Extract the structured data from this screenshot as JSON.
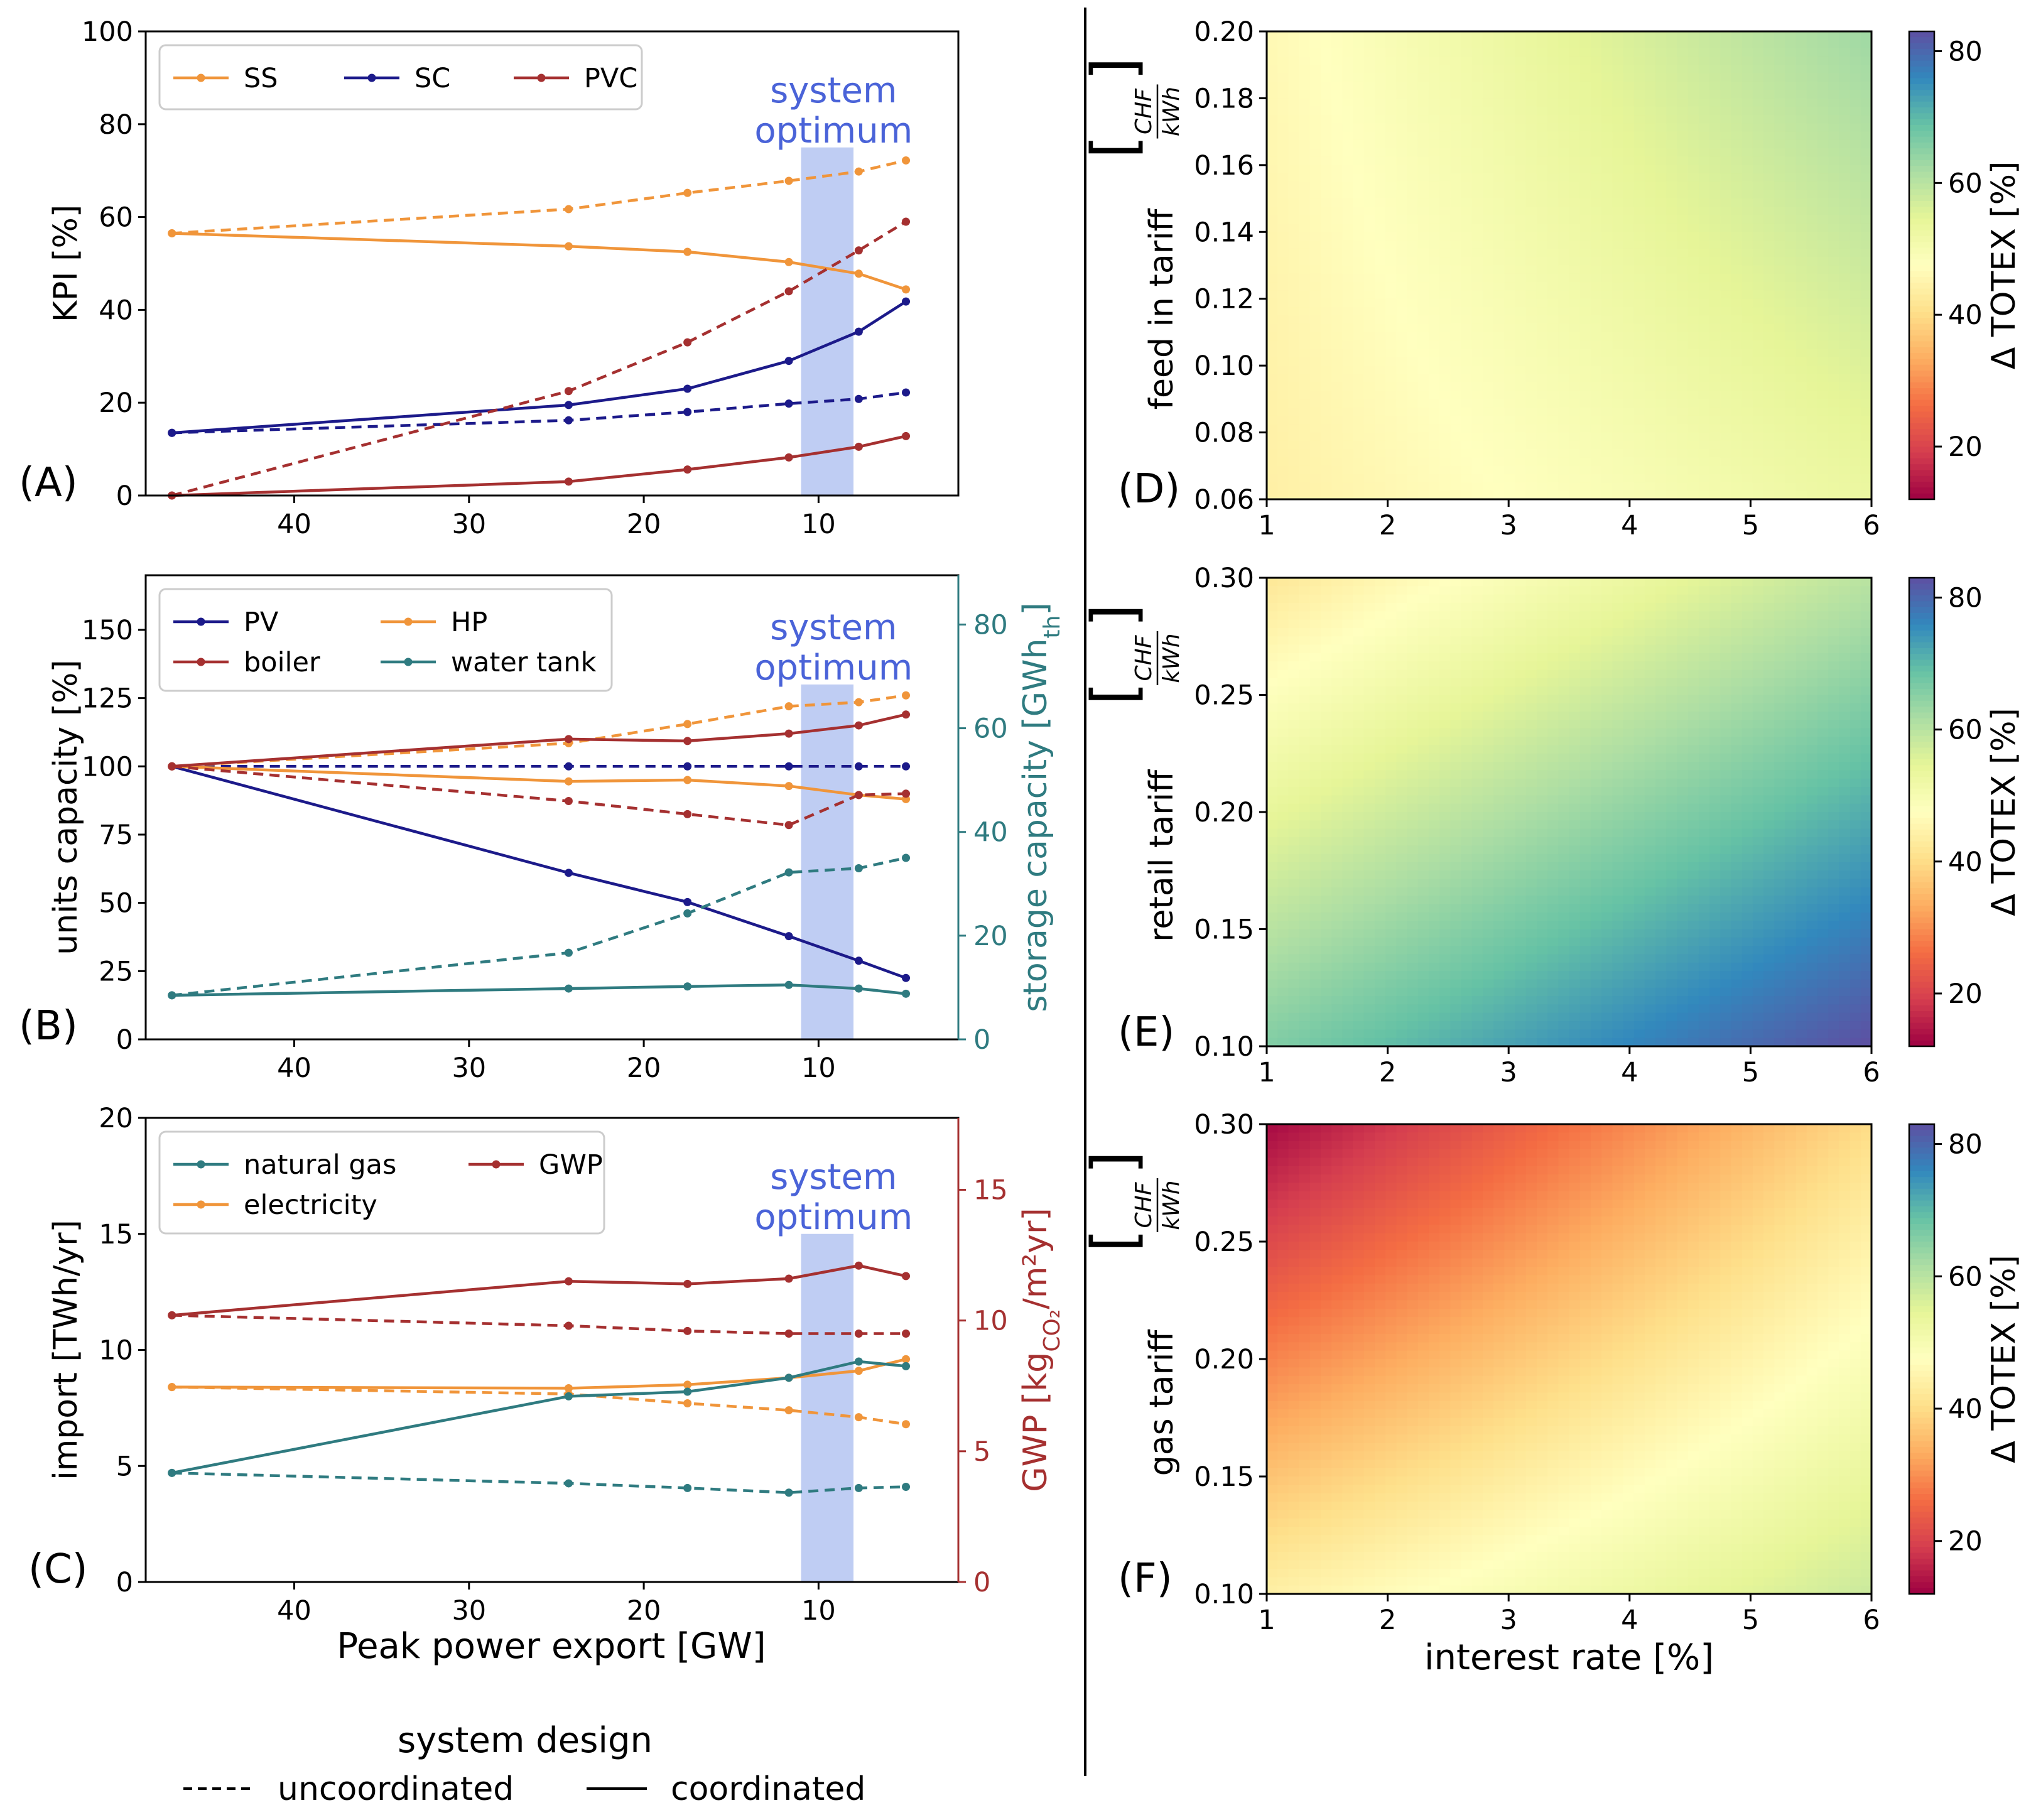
{
  "figure": {
    "legend_title": "system design",
    "legend_items": [
      {
        "label": "uncoordinated",
        "style": "dashed"
      },
      {
        "label": "coordinated",
        "style": "solid"
      }
    ],
    "shared_xlabel": "Peak power export [GW]",
    "optimum_label": [
      "system",
      "optimum"
    ],
    "colors": {
      "orange": "#f0953a",
      "navy": "#1c1a8a",
      "darkred": "#a53030",
      "teal": "#2f7b80",
      "optimum_band": "#bccaf2",
      "optimum_text": "#4a63d8"
    }
  },
  "chart_data": [
    {
      "panel": "(A)",
      "type": "line",
      "ylabel": "KPI [%]",
      "xlim": [
        48.5,
        2
      ],
      "ylim": [
        0,
        100
      ],
      "xticks": [
        40,
        30,
        20,
        10
      ],
      "yticks": [
        0,
        20,
        40,
        60,
        80,
        100
      ],
      "optimum_band": [
        11,
        8
      ],
      "optimum_band_ymax": 75,
      "legend": [
        {
          "name": "SS",
          "color": "#f0953a"
        },
        {
          "name": "SC",
          "color": "#1c1a8a"
        },
        {
          "name": "PVC",
          "color": "#a53030"
        }
      ],
      "series": [
        {
          "name": "SS",
          "style": "dashed",
          "color": "#f0953a",
          "x": [
            47,
            24.3,
            17.5,
            11.7,
            7.7,
            5
          ],
          "y": [
            56.5,
            61.7,
            65.2,
            67.8,
            69.8,
            72.2
          ]
        },
        {
          "name": "SS",
          "style": "solid",
          "color": "#f0953a",
          "x": [
            47,
            24.3,
            17.5,
            11.7,
            7.7,
            5
          ],
          "y": [
            56.5,
            53.7,
            52.5,
            50.3,
            47.8,
            44.4
          ]
        },
        {
          "name": "SC",
          "style": "solid",
          "color": "#1c1a8a",
          "x": [
            47,
            24.3,
            17.5,
            11.7,
            7.7,
            5
          ],
          "y": [
            13.5,
            19.5,
            23,
            29,
            35.3,
            41.8
          ]
        },
        {
          "name": "SC",
          "style": "dashed",
          "color": "#1c1a8a",
          "x": [
            47,
            24.3,
            17.5,
            11.7,
            7.7,
            5
          ],
          "y": [
            13.5,
            16.2,
            18,
            19.8,
            20.8,
            22.2
          ]
        },
        {
          "name": "PVC",
          "style": "dashed",
          "color": "#a53030",
          "x": [
            47,
            24.3,
            17.5,
            11.7,
            7.7,
            5
          ],
          "y": [
            0,
            22.5,
            33,
            44,
            52.8,
            59
          ]
        },
        {
          "name": "PVC",
          "style": "solid",
          "color": "#a53030",
          "x": [
            47,
            24.3,
            17.5,
            11.7,
            7.7,
            5
          ],
          "y": [
            0,
            3,
            5.6,
            8.2,
            10.5,
            12.8
          ]
        }
      ]
    },
    {
      "panel": "(B)",
      "type": "line",
      "ylabel": "units capacity [%]",
      "ylabel_right_main": "storage capacity [GWh",
      "ylabel_right_sub": "th",
      "ylabel_right_end": "]",
      "xlim": [
        48.5,
        2
      ],
      "ylim": [
        0,
        170
      ],
      "ylim_right": [
        0,
        89.5
      ],
      "xticks": [
        40,
        30,
        20,
        10
      ],
      "yticks": [
        0,
        25,
        50,
        75,
        100,
        125,
        150
      ],
      "yticks_right": [
        0,
        20,
        40,
        60,
        80
      ],
      "optimum_band": [
        11,
        8
      ],
      "optimum_band_ymax": 130,
      "legend": [
        {
          "name": "PV",
          "color": "#1c1a8a"
        },
        {
          "name": "HP",
          "color": "#f0953a"
        },
        {
          "name": "boiler",
          "color": "#a53030"
        },
        {
          "name": "water tank",
          "color": "#2f7b80"
        }
      ],
      "series": [
        {
          "name": "PV",
          "style": "dashed",
          "color": "#1c1a8a",
          "x": [
            47,
            24.3,
            17.5,
            11.7,
            7.7,
            5
          ],
          "y": [
            100,
            100,
            100,
            100,
            100,
            100
          ]
        },
        {
          "name": "PV",
          "style": "solid",
          "color": "#1c1a8a",
          "x": [
            47,
            24.3,
            17.5,
            11.7,
            7.7,
            5
          ],
          "y": [
            100,
            61,
            50.3,
            37.8,
            28.8,
            22.5
          ]
        },
        {
          "name": "HP",
          "style": "dashed",
          "color": "#f0953a",
          "x": [
            47,
            24.3,
            17.5,
            11.7,
            7.7,
            5
          ],
          "y": [
            100,
            108.5,
            115.5,
            122,
            123.5,
            126
          ]
        },
        {
          "name": "HP",
          "style": "solid",
          "color": "#f0953a",
          "x": [
            47,
            24.3,
            17.5,
            11.7,
            7.7,
            5
          ],
          "y": [
            100,
            94.5,
            95,
            92.8,
            89.5,
            88
          ]
        },
        {
          "name": "boiler",
          "style": "solid",
          "color": "#a53030",
          "x": [
            47,
            24.3,
            17.5,
            11.7,
            7.7,
            5
          ],
          "y": [
            100,
            110,
            109.3,
            112,
            115,
            119
          ]
        },
        {
          "name": "boiler",
          "style": "dashed",
          "color": "#a53030",
          "x": [
            47,
            24.3,
            17.5,
            11.7,
            7.7,
            5
          ],
          "y": [
            100,
            87.3,
            82.5,
            78.5,
            89.5,
            90
          ]
        },
        {
          "name": "water tank",
          "style": "dashed",
          "color": "#2f7b80",
          "axis": "right",
          "x": [
            47,
            24.3,
            17.5,
            11.7,
            7.7,
            5
          ],
          "y": [
            8.5,
            16.7,
            24.3,
            32.2,
            33,
            35
          ]
        },
        {
          "name": "water tank",
          "style": "solid",
          "color": "#2f7b80",
          "axis": "right",
          "x": [
            47,
            24.3,
            17.5,
            11.7,
            7.7,
            5
          ],
          "y": [
            8.5,
            9.8,
            10.2,
            10.5,
            9.8,
            8.8
          ]
        }
      ]
    },
    {
      "panel": "(C)",
      "type": "line",
      "ylabel": "import [TWh/yr]",
      "ylabel_right_main": "GWP [kg",
      "ylabel_right_sub": "CO₂",
      "ylabel_right_end": "/m²yr]",
      "xlabel": "Peak power export [GW]",
      "xlim": [
        48.5,
        2
      ],
      "ylim": [
        0,
        20
      ],
      "ylim_right": [
        0,
        17.75
      ],
      "xticks": [
        40,
        30,
        20,
        10
      ],
      "yticks": [
        0,
        5,
        10,
        15,
        20
      ],
      "yticks_right": [
        0,
        5,
        10,
        15
      ],
      "optimum_band": [
        11,
        8
      ],
      "optimum_band_ymax": 15,
      "legend": [
        {
          "name": "natural gas",
          "color": "#2f7b80"
        },
        {
          "name": "GWP",
          "color": "#a53030"
        },
        {
          "name": "electricity",
          "color": "#f0953a"
        }
      ],
      "series": [
        {
          "name": "GWP",
          "style": "solid",
          "color": "#a53030",
          "axis": "right",
          "x": [
            47,
            24.3,
            17.5,
            11.7,
            7.7,
            5
          ],
          "y": [
            10.2,
            11.5,
            11.4,
            11.6,
            12.1,
            11.7
          ]
        },
        {
          "name": "GWP",
          "style": "dashed",
          "color": "#a53030",
          "axis": "right",
          "x": [
            47,
            24.3,
            17.5,
            11.7,
            7.7,
            5
          ],
          "y": [
            10.2,
            9.8,
            9.6,
            9.5,
            9.5,
            9.5
          ]
        },
        {
          "name": "electricity",
          "style": "solid",
          "color": "#f0953a",
          "x": [
            47,
            24.3,
            17.5,
            11.7,
            7.7,
            5
          ],
          "y": [
            8.4,
            8.35,
            8.5,
            8.8,
            9.1,
            9.6
          ]
        },
        {
          "name": "electricity",
          "style": "dashed",
          "color": "#f0953a",
          "x": [
            47,
            24.3,
            17.5,
            11.7,
            7.7,
            5
          ],
          "y": [
            8.4,
            8.1,
            7.7,
            7.4,
            7.1,
            6.8
          ]
        },
        {
          "name": "natural gas",
          "style": "solid",
          "color": "#2f7b80",
          "x": [
            47,
            24.3,
            17.5,
            11.7,
            7.7,
            5
          ],
          "y": [
            4.7,
            8,
            8.2,
            8.8,
            9.5,
            9.3
          ]
        },
        {
          "name": "natural gas",
          "style": "dashed",
          "color": "#2f7b80",
          "x": [
            47,
            24.3,
            17.5,
            11.7,
            7.7,
            5
          ],
          "y": [
            4.7,
            4.25,
            4.05,
            3.85,
            4.05,
            4.1
          ]
        }
      ]
    },
    {
      "panel": "(D)",
      "type": "heatmap",
      "xlabel": "",
      "ylabel": "feed in tariff",
      "unit_num": "CHF",
      "unit_den": "kWh",
      "xlim": [
        1,
        6
      ],
      "ylim": [
        0.06,
        0.2
      ],
      "xticks": [
        1,
        2,
        3,
        4,
        5,
        6
      ],
      "yticks": [
        "0.06",
        "0.08",
        "0.10",
        "0.12",
        "0.14",
        "0.16",
        "0.18",
        "0.20"
      ],
      "corner_values": {
        "top_left": 46,
        "top_right": 63,
        "bottom_left": 44,
        "bottom_right": 53
      },
      "colorbar_label": "Δ TOTEX [%]",
      "colorbar_range": [
        12,
        83
      ],
      "colorbar_ticks": [
        20,
        40,
        60,
        80
      ]
    },
    {
      "panel": "(E)",
      "type": "heatmap",
      "xlabel": "",
      "ylabel": "retail tariff",
      "unit_num": "CHF",
      "unit_den": "kWh",
      "xlim": [
        1,
        6
      ],
      "ylim": [
        0.1,
        0.3
      ],
      "xticks": [
        1,
        2,
        3,
        4,
        5,
        6
      ],
      "yticks": [
        "0.10",
        "0.15",
        "0.20",
        "0.25",
        "0.30"
      ],
      "corner_values": {
        "top_left": 42,
        "top_right": 60,
        "bottom_left": 66,
        "bottom_right": 83
      },
      "colorbar_label": "Δ TOTEX [%]",
      "colorbar_range": [
        12,
        83
      ],
      "colorbar_ticks": [
        20,
        40,
        60,
        80
      ]
    },
    {
      "panel": "(F)",
      "type": "heatmap",
      "xlabel": "interest rate  [%]",
      "ylabel": "gas tariff",
      "unit_num": "CHF",
      "unit_den": "kWh",
      "xlim": [
        1,
        6
      ],
      "ylim": [
        0.1,
        0.3
      ],
      "xticks": [
        1,
        2,
        3,
        4,
        5,
        6
      ],
      "yticks": [
        "0.10",
        "0.15",
        "0.20",
        "0.25",
        "0.30"
      ],
      "corner_values": {
        "top_left": 13,
        "top_right": 40,
        "bottom_left": 44,
        "bottom_right": 58
      },
      "colorbar_label": "Δ TOTEX [%]",
      "colorbar_range": [
        12,
        83
      ],
      "colorbar_ticks": [
        20,
        40,
        60,
        80
      ]
    }
  ]
}
